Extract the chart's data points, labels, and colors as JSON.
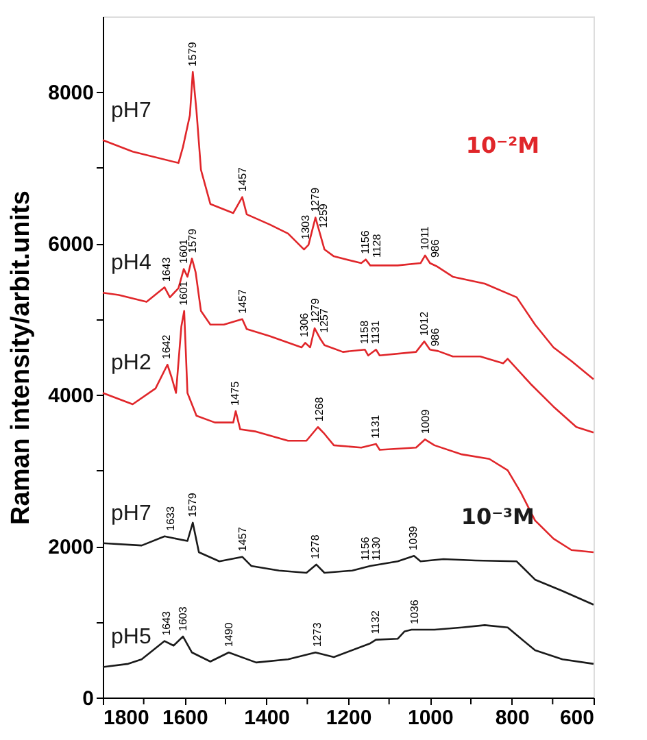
{
  "chart_data": {
    "type": "line",
    "ylabel": "Raman intensity/arbit.units",
    "xlim": [
      1800,
      600
    ],
    "ylim": [
      0,
      9000
    ],
    "xticks": [
      1800,
      {
        "value": 1700,
        "label": null
      },
      1600,
      {
        "value": 1500,
        "label": null
      },
      1400,
      {
        "value": 1300,
        "label": null
      },
      1200,
      {
        "value": 1100,
        "label": null
      },
      1000,
      {
        "value": 900,
        "label": null
      },
      800,
      {
        "value": 700,
        "label": null
      },
      600
    ],
    "yticks": [
      0,
      {
        "value": 1000,
        "label": null
      },
      2000,
      {
        "value": 3000,
        "label": null
      },
      4000,
      {
        "value": 5000,
        "label": null
      },
      6000,
      {
        "value": 7000,
        "label": null
      },
      8000
    ],
    "grid": false,
    "marker": "none",
    "line_style": "solid",
    "series": [
      {
        "name": "pH7",
        "color": "#e0262a",
        "x": [
          1800,
          1727,
          1615,
          1604,
          1587,
          1580,
          1571,
          1560,
          1537,
          1481,
          1459,
          1448,
          1392,
          1347,
          1308,
          1297,
          1280,
          1269,
          1258,
          1235,
          1168,
          1157,
          1146,
          1079,
          1023,
          1012,
          1000,
          984,
          944,
          866,
          788,
          743,
          698,
          654,
          600
        ],
        "values": [
          7365,
          7214,
          7064,
          7274,
          7696,
          8267,
          7756,
          6974,
          6522,
          6402,
          6613,
          6384,
          6251,
          6131,
          5921,
          5981,
          6342,
          6131,
          5921,
          5830,
          5740,
          5788,
          5710,
          5710,
          5740,
          5842,
          5740,
          5700,
          5560,
          5469,
          5289,
          4928,
          4627,
          4446,
          4206
        ]
      },
      {
        "name": "pH4",
        "color": "#e0262a",
        "x": [
          1800,
          1761,
          1693,
          1649,
          1636,
          1615,
          1602,
          1593,
          1582,
          1573,
          1560,
          1537,
          1504,
          1459,
          1448,
          1392,
          1314,
          1305,
          1293,
          1282,
          1269,
          1258,
          1213,
          1159,
          1151,
          1132,
          1123,
          1034,
          1014,
          1000,
          980,
          944,
          877,
          821,
          810,
          754,
          698,
          642,
          600
        ],
        "values": [
          5349,
          5319,
          5228,
          5421,
          5289,
          5409,
          5662,
          5560,
          5800,
          5620,
          5108,
          4928,
          4928,
          5000,
          4868,
          4777,
          4627,
          4687,
          4627,
          4880,
          4747,
          4657,
          4567,
          4597,
          4520,
          4597,
          4520,
          4567,
          4705,
          4597,
          4578,
          4507,
          4507,
          4416,
          4476,
          4145,
          3844,
          3574,
          3502
        ]
      },
      {
        "name": "pH2",
        "color": "#e0262a",
        "x": [
          1800,
          1727,
          1671,
          1642,
          1632,
          1621,
          1608,
          1601,
          1593,
          1571,
          1526,
          1481,
          1475,
          1464,
          1425,
          1347,
          1302,
          1274,
          1258,
          1235,
          1168,
          1132,
          1123,
          1034,
          1012,
          989,
          922,
          855,
          810,
          777,
          743,
          698,
          654,
          600
        ],
        "values": [
          4025,
          3875,
          4085,
          4398,
          4235,
          4025,
          4900,
          5108,
          4025,
          3724,
          3634,
          3634,
          3784,
          3544,
          3514,
          3393,
          3393,
          3574,
          3484,
          3333,
          3303,
          3351,
          3273,
          3303,
          3411,
          3333,
          3213,
          3153,
          3002,
          2701,
          2340,
          2100,
          1949,
          1919
        ]
      },
      {
        "name": "pH7",
        "color": "#1a1a1a",
        "x": [
          1800,
          1705,
          1649,
          1593,
          1580,
          1565,
          1515,
          1459,
          1437,
          1369,
          1302,
          1278,
          1258,
          1190,
          1146,
          1079,
          1039,
          1023,
          967,
          889,
          788,
          743,
          676,
          600
        ],
        "values": [
          2039,
          2009,
          2130,
          2069,
          2310,
          1919,
          1799,
          1859,
          1739,
          1678,
          1648,
          1757,
          1648,
          1678,
          1739,
          1799,
          1871,
          1799,
          1829,
          1811,
          1799,
          1558,
          1408,
          1227
        ]
      },
      {
        "name": "pH5",
        "color": "#1a1a1a",
        "x": [
          1800,
          1738,
          1705,
          1649,
          1627,
          1604,
          1582,
          1537,
          1492,
          1425,
          1347,
          1280,
          1235,
          1146,
          1132,
          1079,
          1062,
          1045,
          989,
          922,
          866,
          810,
          777,
          743,
          676,
          600
        ],
        "values": [
          403,
          445,
          505,
          746,
          686,
          806,
          595,
          475,
          595,
          463,
          505,
          595,
          535,
          716,
          764,
          776,
          874,
          896,
          896,
          926,
          956,
          926,
          776,
          625,
          505,
          445
        ]
      }
    ],
    "annotations": [
      {
        "text": "1579",
        "x": 1579,
        "y": 8267
      },
      {
        "text": "1457",
        "x": 1457,
        "y": 6613
      },
      {
        "text": "1303",
        "x": 1303,
        "y": 5981
      },
      {
        "text": "1279",
        "x": 1279,
        "y": 6342
      },
      {
        "text": "1259",
        "x": 1259,
        "y": 6131
      },
      {
        "text": "1156",
        "x": 1156,
        "y": 5788
      },
      {
        "text": "1128",
        "x": 1128,
        "y": 5740
      },
      {
        "text": "1011",
        "x": 1011,
        "y": 5842
      },
      {
        "text": "986",
        "x": 986,
        "y": 5740
      },
      {
        "text": "1643",
        "x": 1643,
        "y": 5421
      },
      {
        "text": "1601",
        "x": 1601,
        "y": 5662
      },
      {
        "text": "1579",
        "x": 1579,
        "y": 5800
      },
      {
        "text": "1457",
        "x": 1457,
        "y": 5000
      },
      {
        "text": "1306",
        "x": 1306,
        "y": 4687
      },
      {
        "text": "1279",
        "x": 1279,
        "y": 4880
      },
      {
        "text": "1257",
        "x": 1257,
        "y": 4747
      },
      {
        "text": "1158",
        "x": 1158,
        "y": 4597
      },
      {
        "text": "1131",
        "x": 1131,
        "y": 4597
      },
      {
        "text": "1012",
        "x": 1012,
        "y": 4705
      },
      {
        "text": "986",
        "x": 986,
        "y": 4567
      },
      {
        "text": "1642",
        "x": 1642,
        "y": 4398
      },
      {
        "text": "1601",
        "x": 1601,
        "y": 5108
      },
      {
        "text": "1475",
        "x": 1475,
        "y": 3784
      },
      {
        "text": "1268",
        "x": 1268,
        "y": 3574
      },
      {
        "text": "1131",
        "x": 1131,
        "y": 3351
      },
      {
        "text": "1009",
        "x": 1009,
        "y": 3411
      },
      {
        "text": "1633",
        "x": 1633,
        "y": 2130
      },
      {
        "text": "1579",
        "x": 1579,
        "y": 2310
      },
      {
        "text": "1457",
        "x": 1457,
        "y": 1859
      },
      {
        "text": "1278",
        "x": 1278,
        "y": 1757
      },
      {
        "text": "1156",
        "x": 1156,
        "y": 1739
      },
      {
        "text": "1130",
        "x": 1130,
        "y": 1739
      },
      {
        "text": "1039",
        "x": 1039,
        "y": 1871
      },
      {
        "text": "1643",
        "x": 1643,
        "y": 746
      },
      {
        "text": "1603",
        "x": 1603,
        "y": 806
      },
      {
        "text": "1490",
        "x": 1490,
        "y": 595
      },
      {
        "text": "1273",
        "x": 1273,
        "y": 595
      },
      {
        "text": "1132",
        "x": 1132,
        "y": 764
      },
      {
        "text": "1036",
        "x": 1036,
        "y": 896
      },
      "10⁻²M",
      "10⁻³M"
    ]
  }
}
